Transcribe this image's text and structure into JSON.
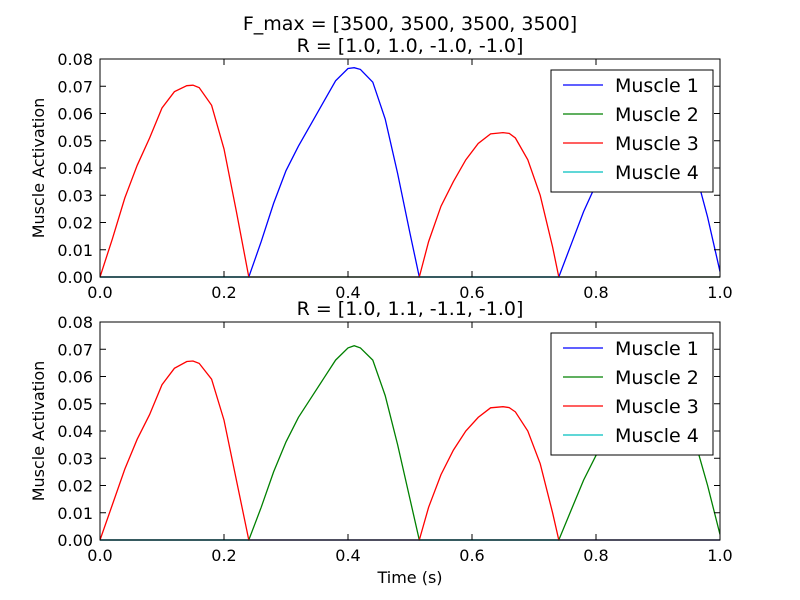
{
  "figure": {
    "title_line1": "F_max = [3500, 3500, 3500, 3500]"
  },
  "chart_data": [
    {
      "type": "line",
      "title": "R = [1.0, 1.0, -1.0, -1.0]",
      "xlabel": "",
      "ylabel": "Muscle Activation",
      "xlim": [
        0.0,
        1.0
      ],
      "ylim": [
        0.0,
        0.08
      ],
      "x_ticks": [
        "0.0",
        "0.2",
        "0.4",
        "0.6",
        "0.8",
        "1.0"
      ],
      "y_ticks": [
        "0.00",
        "0.01",
        "0.02",
        "0.03",
        "0.04",
        "0.05",
        "0.06",
        "0.07",
        "0.08"
      ],
      "grid": false,
      "legend_position": "top-right",
      "series": [
        {
          "name": "Muscle 1",
          "color": "#0000ff",
          "x": [
            0.0,
            0.24,
            0.26,
            0.28,
            0.3,
            0.32,
            0.34,
            0.36,
            0.38,
            0.4,
            0.41,
            0.42,
            0.44,
            0.46,
            0.48,
            0.5,
            0.515,
            0.74,
            0.76,
            0.78,
            0.8,
            0.82,
            0.84,
            0.86,
            0.88,
            0.9,
            0.92,
            0.94,
            0.96,
            0.98,
            1.0
          ],
          "y": [
            0.0,
            0.0,
            0.013,
            0.027,
            0.039,
            0.048,
            0.056,
            0.064,
            0.072,
            0.0765,
            0.0768,
            0.0762,
            0.0715,
            0.058,
            0.038,
            0.016,
            0.0,
            0.0,
            0.012,
            0.024,
            0.034,
            0.041,
            0.046,
            0.049,
            0.051,
            0.052,
            0.05,
            0.046,
            0.039,
            0.022,
            0.002
          ]
        },
        {
          "name": "Muscle 2",
          "color": "#008000",
          "x": [
            0.0,
            1.0
          ],
          "y": [
            0.0,
            0.0
          ]
        },
        {
          "name": "Muscle 3",
          "color": "#ff0000",
          "x": [
            0.0,
            0.02,
            0.04,
            0.06,
            0.08,
            0.1,
            0.12,
            0.14,
            0.15,
            0.16,
            0.18,
            0.2,
            0.22,
            0.24,
            0.515,
            0.53,
            0.55,
            0.57,
            0.59,
            0.61,
            0.63,
            0.65,
            0.66,
            0.67,
            0.69,
            0.71,
            0.73,
            0.74,
            1.0
          ],
          "y": [
            0.0,
            0.014,
            0.029,
            0.041,
            0.051,
            0.062,
            0.068,
            0.0702,
            0.0704,
            0.0695,
            0.063,
            0.047,
            0.024,
            0.0,
            0.0,
            0.013,
            0.026,
            0.035,
            0.043,
            0.049,
            0.0525,
            0.053,
            0.0527,
            0.051,
            0.043,
            0.03,
            0.011,
            0.0,
            0.0
          ]
        },
        {
          "name": "Muscle 4",
          "color": "#00bfbf",
          "x": [
            0.0,
            1.0
          ],
          "y": [
            0.0,
            0.0
          ]
        }
      ]
    },
    {
      "type": "line",
      "title": "R = [1.0, 1.1, -1.1, -1.0]",
      "xlabel": "Time (s)",
      "ylabel": "Muscle Activation",
      "xlim": [
        0.0,
        1.0
      ],
      "ylim": [
        0.0,
        0.08
      ],
      "x_ticks": [
        "0.0",
        "0.2",
        "0.4",
        "0.6",
        "0.8",
        "1.0"
      ],
      "y_ticks": [
        "0.00",
        "0.01",
        "0.02",
        "0.03",
        "0.04",
        "0.05",
        "0.06",
        "0.07",
        "0.08"
      ],
      "grid": false,
      "legend_position": "top-right",
      "series": [
        {
          "name": "Muscle 1",
          "color": "#0000ff",
          "x": [
            0.0,
            1.0
          ],
          "y": [
            0.0,
            0.0
          ]
        },
        {
          "name": "Muscle 2",
          "color": "#008000",
          "x": [
            0.0,
            0.24,
            0.26,
            0.28,
            0.3,
            0.32,
            0.34,
            0.36,
            0.38,
            0.4,
            0.41,
            0.42,
            0.44,
            0.46,
            0.48,
            0.5,
            0.515,
            0.74,
            0.76,
            0.78,
            0.8,
            0.82,
            0.84,
            0.86,
            0.88,
            0.9,
            0.92,
            0.94,
            0.96,
            0.98,
            1.0
          ],
          "y": [
            0.0,
            0.0,
            0.012,
            0.025,
            0.036,
            0.045,
            0.052,
            0.059,
            0.066,
            0.0705,
            0.0713,
            0.0705,
            0.066,
            0.053,
            0.035,
            0.015,
            0.0,
            0.0,
            0.011,
            0.022,
            0.031,
            0.038,
            0.043,
            0.046,
            0.048,
            0.0485,
            0.047,
            0.043,
            0.036,
            0.02,
            0.002
          ]
        },
        {
          "name": "Muscle 3",
          "color": "#ff0000",
          "x": [
            0.0,
            0.02,
            0.04,
            0.06,
            0.08,
            0.1,
            0.12,
            0.14,
            0.15,
            0.16,
            0.18,
            0.2,
            0.22,
            0.24,
            0.515,
            0.53,
            0.55,
            0.57,
            0.59,
            0.61,
            0.63,
            0.65,
            0.66,
            0.67,
            0.69,
            0.71,
            0.73,
            0.74,
            1.0
          ],
          "y": [
            0.0,
            0.013,
            0.026,
            0.037,
            0.046,
            0.057,
            0.063,
            0.0655,
            0.0657,
            0.0648,
            0.059,
            0.044,
            0.022,
            0.0,
            0.0,
            0.012,
            0.024,
            0.033,
            0.04,
            0.045,
            0.0485,
            0.0489,
            0.0486,
            0.047,
            0.04,
            0.028,
            0.01,
            0.0,
            0.0
          ]
        },
        {
          "name": "Muscle 4",
          "color": "#00bfbf",
          "x": [
            0.0,
            1.0
          ],
          "y": [
            0.0,
            0.0
          ]
        }
      ]
    }
  ]
}
